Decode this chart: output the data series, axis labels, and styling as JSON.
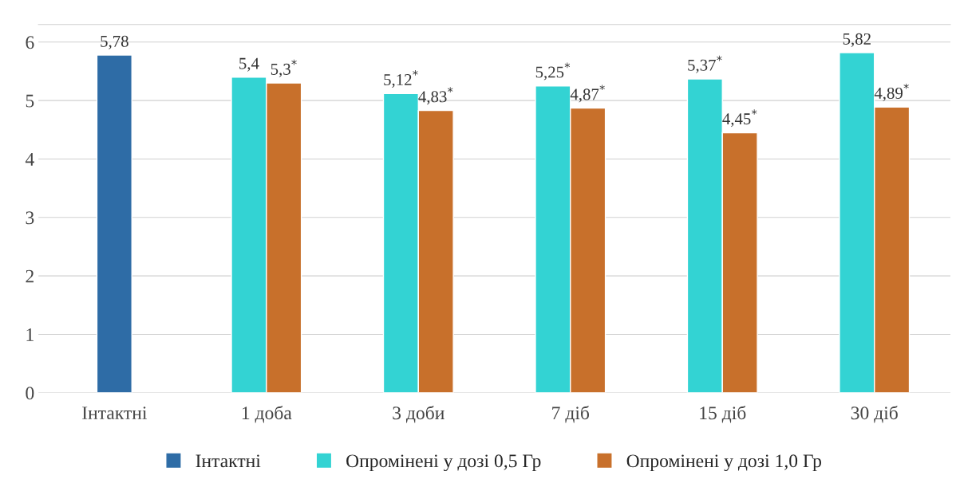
{
  "chart_data": {
    "type": "bar",
    "categories": [
      "Інтактні",
      "1 доба",
      "3 доби",
      "7 діб",
      "15 діб",
      "30 діб"
    ],
    "series": [
      {
        "name": "Інтактні",
        "color": "#2e6ca6",
        "values": [
          5.78,
          null,
          null,
          null,
          null,
          null
        ],
        "value_labels": [
          "5,78",
          null,
          null,
          null,
          null,
          null
        ]
      },
      {
        "name": "Опромінені у дозі 0,5 Гр",
        "color": "#33d3d3",
        "values": [
          null,
          5.4,
          5.12,
          5.25,
          5.37,
          5.82
        ],
        "value_labels": [
          null,
          "5,4",
          "5,12$^{*}$",
          "5,25$^{*}$",
          "5,37$^{*}$",
          "5,82"
        ]
      },
      {
        "name": "Опромінені у дозі 1,0 Гр",
        "color": "#c8702b",
        "values": [
          null,
          5.3,
          4.83,
          4.87,
          4.45,
          4.89
        ],
        "value_labels": [
          null,
          "5,3$^{*}$",
          "4,83$^{*}$",
          "4,87$^{*}$",
          "4,45$^{*}$",
          "4,89$^{*}$"
        ]
      }
    ],
    "ylim": [
      0,
      6.3
    ],
    "yticks": [
      0,
      1,
      2,
      3,
      4,
      5,
      6
    ],
    "grid": "y",
    "legend": "bottom"
  }
}
